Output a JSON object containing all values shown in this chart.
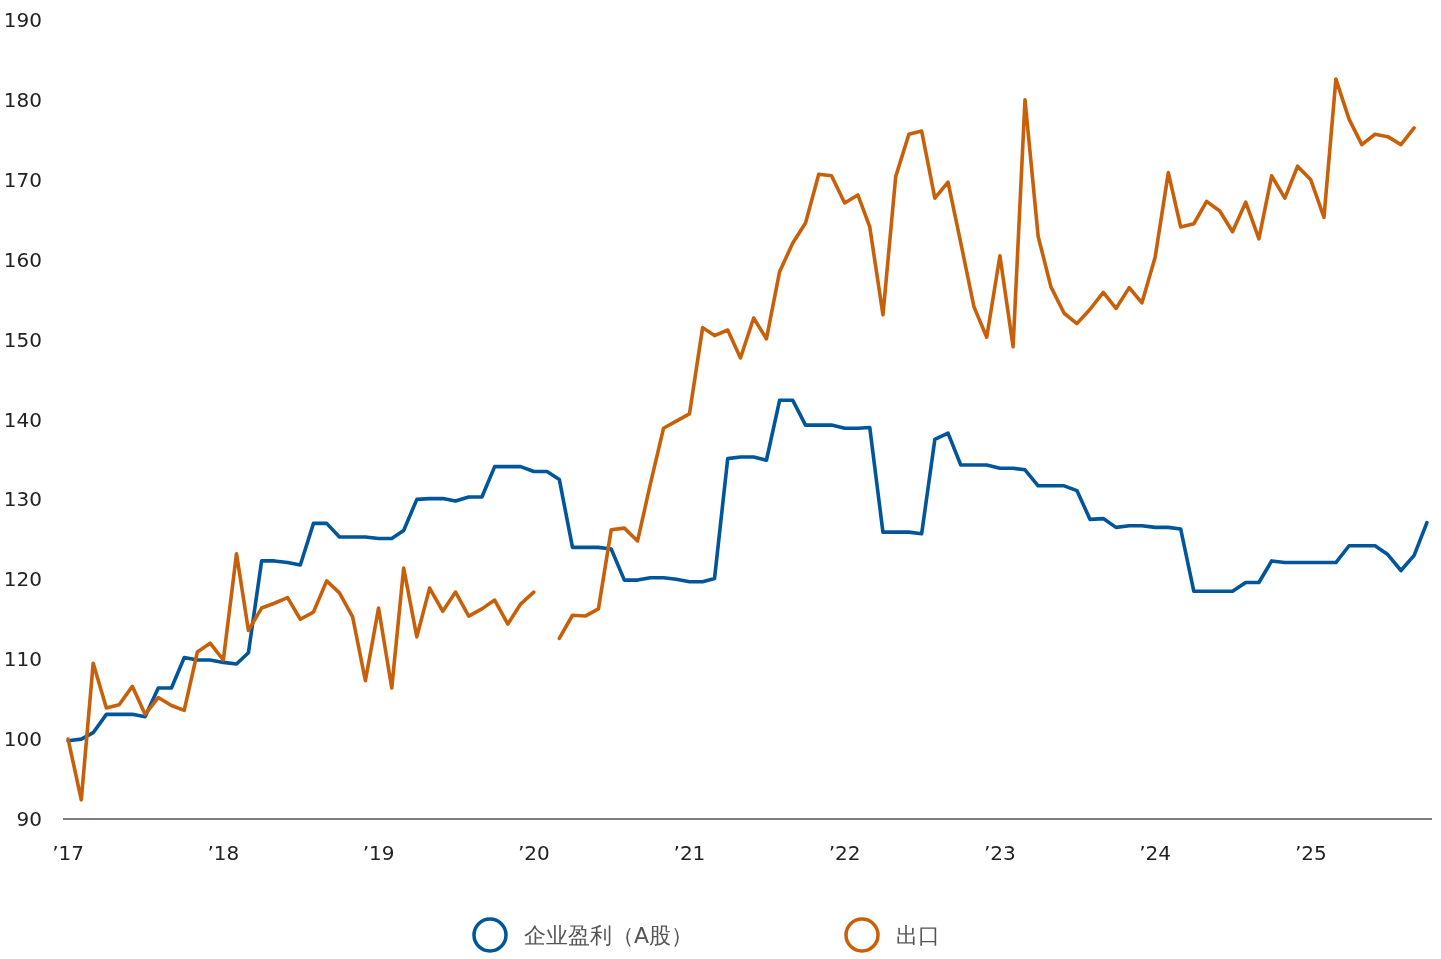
{
  "chart_data": {
    "type": "line",
    "legend": "bottom",
    "x": [
      "2017-01",
      "2017-02",
      "2017-03",
      "2017-04",
      "2017-05",
      "2017-06",
      "2017-07",
      "2017-08",
      "2017-09",
      "2017-10",
      "2017-11",
      "2017-12",
      "2018-01",
      "2018-02",
      "2018-03",
      "2018-04",
      "2018-05",
      "2018-06",
      "2018-07",
      "2018-08",
      "2018-09",
      "2018-10",
      "2018-11",
      "2018-12",
      "2019-01",
      "2019-02",
      "2019-03",
      "2019-04",
      "2019-05",
      "2019-06",
      "2019-07",
      "2019-08",
      "2019-09",
      "2019-10",
      "2019-11",
      "2019-12",
      "2020-01",
      "2020-02",
      "2020-03",
      "2020-04",
      "2020-05",
      "2020-06",
      "2020-07",
      "2020-08",
      "2020-09",
      "2020-10",
      "2020-11",
      "2020-12",
      "2021-01",
      "2021-02",
      "2021-03",
      "2021-04",
      "2021-05",
      "2021-06",
      "2021-07",
      "2021-08",
      "2021-09",
      "2021-10",
      "2021-11",
      "2021-12",
      "2022-01",
      "2022-02",
      "2022-03",
      "2022-04",
      "2022-05",
      "2022-06",
      "2022-07",
      "2022-08",
      "2022-09",
      "2022-10",
      "2022-11",
      "2022-12",
      "2023-01",
      "2023-02",
      "2023-03",
      "2023-04",
      "2023-05",
      "2023-06",
      "2023-07",
      "2023-08",
      "2023-09",
      "2023-10",
      "2023-11",
      "2023-12",
      "2024-01",
      "2024-02",
      "2024-03",
      "2024-04",
      "2024-05",
      "2024-06",
      "2024-07",
      "2024-08",
      "2024-09",
      "2024-10",
      "2024-11",
      "2024-12",
      "2025-01",
      "2025-02",
      "2025-03",
      "2025-04",
      "2025-05",
      "2025-06",
      "2025-07",
      "2025-08",
      "2025-09",
      "2025-10"
    ],
    "series": [
      {
        "name": "企业盈利（A股）",
        "color": "#00559b",
        "values": [
          99.8,
          100.0,
          100.8,
          103.1,
          103.1,
          103.1,
          102.8,
          106.4,
          106.4,
          110.2,
          109.9,
          109.9,
          109.6,
          109.4,
          110.8,
          122.3,
          122.3,
          122.1,
          121.8,
          127.0,
          127.0,
          125.3,
          125.3,
          125.3,
          125.1,
          125.1,
          126.1,
          130.0,
          130.1,
          130.1,
          129.8,
          130.3,
          130.3,
          134.1,
          134.1,
          134.1,
          133.5,
          133.5,
          132.5,
          124.0,
          124.0,
          124.0,
          123.8,
          119.9,
          119.9,
          120.2,
          120.2,
          120.0,
          119.7,
          119.7,
          120.1,
          135.1,
          135.3,
          135.3,
          134.9,
          142.4,
          142.4,
          139.3,
          139.3,
          139.3,
          138.9,
          138.9,
          139.0,
          125.9,
          125.9,
          125.9,
          125.7,
          137.5,
          138.3,
          134.3,
          134.3,
          134.3,
          133.9,
          133.9,
          133.7,
          131.7,
          131.7,
          131.7,
          131.1,
          127.5,
          127.6,
          126.5,
          126.7,
          126.7,
          126.5,
          126.5,
          126.3,
          118.5,
          118.5,
          118.5,
          118.5,
          119.6,
          119.6,
          122.3,
          122.1,
          122.1,
          122.1,
          122.1,
          122.1,
          124.2,
          124.2,
          124.2,
          123.1,
          121.1,
          123.0,
          127.1
        ]
      },
      {
        "name": "出口",
        "color": "#c8600a",
        "values": [
          100.0,
          92.4,
          109.5,
          103.9,
          104.3,
          106.6,
          103.1,
          105.2,
          104.2,
          103.6,
          110.9,
          112.0,
          109.9,
          123.2,
          113.6,
          116.4,
          117.0,
          117.7,
          115.0,
          115.9,
          119.8,
          118.3,
          115.3,
          107.3,
          116.4,
          106.4,
          121.4,
          112.8,
          118.9,
          116.0,
          118.4,
          115.4,
          116.3,
          117.4,
          114.4,
          116.9,
          118.4,
          null,
          112.6,
          115.5,
          115.4,
          116.3,
          126.2,
          126.4,
          124.8,
          131.9,
          138.9,
          139.8,
          140.7,
          151.5,
          150.5,
          151.2,
          147.7,
          152.7,
          150.1,
          158.5,
          162.1,
          164.6,
          170.7,
          170.5,
          167.1,
          168.1,
          164.1,
          153.1,
          170.4,
          175.7,
          176.1,
          167.7,
          169.7,
          162.1,
          154.1,
          150.3,
          160.5,
          149.1,
          180.0,
          162.9,
          156.6,
          153.3,
          152.0,
          153.8,
          155.9,
          153.9,
          156.5,
          154.6,
          160.3,
          170.9,
          164.1,
          164.5,
          167.3,
          166.1,
          163.5,
          167.2,
          162.6,
          170.5,
          167.7,
          171.7,
          170.0,
          165.3,
          182.6,
          177.6,
          174.4,
          175.7,
          175.4,
          174.4,
          176.5,
          null
        ]
      }
    ],
    "xlim": [
      "2016-12-20",
      "2025-10-13"
    ],
    "xticks": [
      {
        "value": "2017-01",
        "label": "’17"
      },
      {
        "value": "2018-01",
        "label": "’18"
      },
      {
        "value": "2019-01",
        "label": "’19"
      },
      {
        "value": "2020-01",
        "label": "’20"
      },
      {
        "value": "2021-01",
        "label": "’21"
      },
      {
        "value": "2022-01",
        "label": "’22"
      },
      {
        "value": "2023-01",
        "label": "’23"
      },
      {
        "value": "2024-01",
        "label": "’24"
      },
      {
        "value": "2025-01",
        "label": "’25"
      }
    ],
    "ylim": [
      90,
      190
    ],
    "yticks": [
      90,
      100,
      110,
      120,
      130,
      140,
      150,
      160,
      170,
      180,
      190
    ]
  }
}
